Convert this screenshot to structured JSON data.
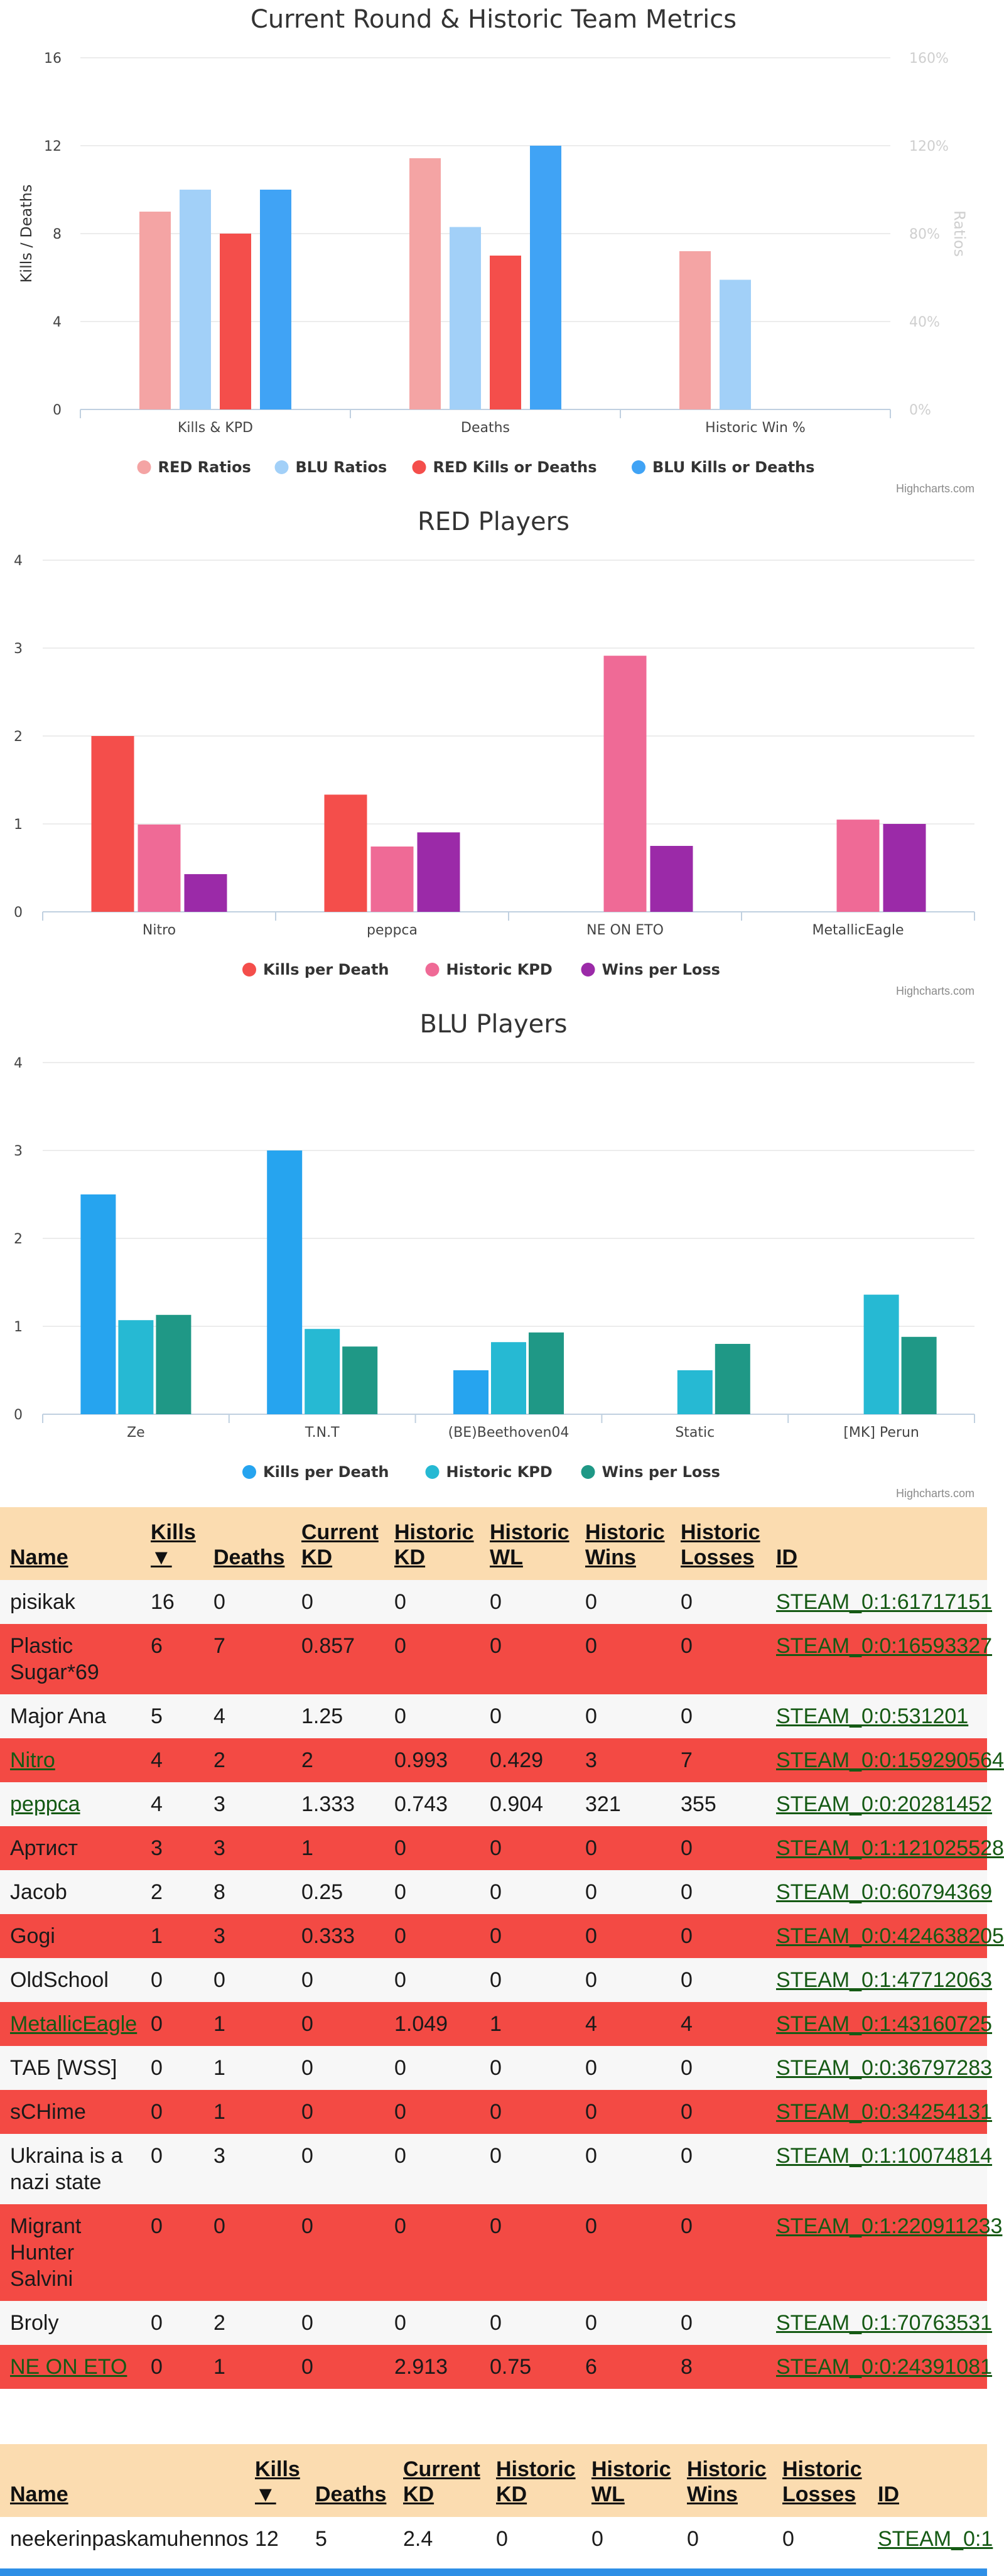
{
  "colors": {
    "red_light": "#f4a4a4",
    "blu_light": "#a2d0f8",
    "red": "#f44e4b",
    "blu": "#40a3f5",
    "red_kpd": "#f44e4b",
    "red_hkpd": "#ef6a96",
    "red_wpl": "#9b2aa8",
    "blu_kpd": "#26a4ef",
    "blu_hkpd": "#26b9d3",
    "blu_wpl": "#1f9886"
  },
  "chart_data": [
    {
      "type": "bar",
      "title": "Current Round & Historic Team Metrics",
      "categories": [
        "Kills & KPD",
        "Deaths",
        "Historic Win %"
      ],
      "ylabel": "Kills / Deaths",
      "ylabel_right": "Ratios",
      "ylim": [
        0,
        16
      ],
      "yticks": [
        "0",
        "4",
        "8",
        "12",
        "16"
      ],
      "ylim_right": [
        0,
        1.6
      ],
      "yticks_right": [
        "0%",
        "40%",
        "80%",
        "120%",
        "160%"
      ],
      "series": [
        {
          "name": "RED Ratios",
          "axis": "right",
          "values": [
            0.9,
            1.143,
            0.72
          ]
        },
        {
          "name": "BLU Ratios",
          "axis": "right",
          "values": [
            1.0,
            0.83,
            0.59
          ]
        },
        {
          "name": "RED Kills or Deaths",
          "axis": "left",
          "values": [
            8,
            7,
            null
          ]
        },
        {
          "name": "BLU Kills or Deaths",
          "axis": "left",
          "values": [
            10,
            12,
            null
          ]
        }
      ],
      "credits": "Highcharts.com"
    },
    {
      "type": "bar",
      "title": "RED Players",
      "categories": [
        "Nitro",
        "peppca",
        "NE ON ETO",
        "MetallicEagle"
      ],
      "ylim": [
        0,
        4
      ],
      "yticks": [
        "0",
        "1",
        "2",
        "3",
        "4"
      ],
      "series": [
        {
          "name": "Kills per Death",
          "values": [
            2,
            1.333,
            null,
            null
          ]
        },
        {
          "name": "Historic KPD",
          "values": [
            0.993,
            0.743,
            2.913,
            1.049
          ]
        },
        {
          "name": "Wins per Loss",
          "values": [
            0.429,
            0.904,
            0.75,
            1
          ]
        }
      ],
      "credits": "Highcharts.com"
    },
    {
      "type": "bar",
      "title": "BLU Players",
      "categories": [
        "Ze",
        "T.N.T",
        "(BE)Beethoven04",
        "Static",
        "[MK] Perun"
      ],
      "ylim": [
        0,
        4
      ],
      "yticks": [
        "0",
        "1",
        "2",
        "3",
        "4"
      ],
      "series": [
        {
          "name": "Kills per Death",
          "values": [
            2.5,
            3,
            0.5,
            null,
            null
          ]
        },
        {
          "name": "Historic KPD",
          "values": [
            1.07,
            0.97,
            0.82,
            0.5,
            1.36
          ]
        },
        {
          "name": "Wins per Loss",
          "values": [
            1.13,
            0.77,
            0.93,
            0.8,
            0.88
          ]
        }
      ],
      "credits": "Highcharts.com"
    }
  ],
  "tables": [
    {
      "headers": [
        "Name",
        "Kills ▼",
        "Deaths",
        "Current KD",
        "Historic KD",
        "Historic WL",
        "Historic Wins",
        "Historic Losses",
        "ID"
      ],
      "rows": [
        {
          "team": "plain",
          "link": false,
          "cells": [
            "pisikak",
            "16",
            "0",
            "0",
            "0",
            "0",
            "0",
            "0",
            "STEAM_0:1:61717151"
          ]
        },
        {
          "team": "red",
          "link": false,
          "cells": [
            "Plastic Sugar*69",
            "6",
            "7",
            "0.857",
            "0",
            "0",
            "0",
            "0",
            "STEAM_0:0:16593327"
          ]
        },
        {
          "team": "plain",
          "link": false,
          "cells": [
            "Major Ana",
            "5",
            "4",
            "1.25",
            "0",
            "0",
            "0",
            "0",
            "STEAM_0:0:531201"
          ]
        },
        {
          "team": "red",
          "link": true,
          "cells": [
            "Nitro",
            "4",
            "2",
            "2",
            "0.993",
            "0.429",
            "3",
            "7",
            "STEAM_0:0:159290564"
          ]
        },
        {
          "team": "plain",
          "link": true,
          "cells": [
            "peppca",
            "4",
            "3",
            "1.333",
            "0.743",
            "0.904",
            "321",
            "355",
            "STEAM_0:0:20281452"
          ]
        },
        {
          "team": "red",
          "link": false,
          "cells": [
            "Артист",
            "3",
            "3",
            "1",
            "0",
            "0",
            "0",
            "0",
            "STEAM_0:1:121025528"
          ]
        },
        {
          "team": "plain",
          "link": false,
          "cells": [
            "Jacob",
            "2",
            "8",
            "0.25",
            "0",
            "0",
            "0",
            "0",
            "STEAM_0:0:60794369"
          ]
        },
        {
          "team": "red",
          "link": false,
          "cells": [
            "Gogi",
            "1",
            "3",
            "0.333",
            "0",
            "0",
            "0",
            "0",
            "STEAM_0:0:424638205"
          ]
        },
        {
          "team": "plain",
          "link": false,
          "cells": [
            "OldSchool",
            "0",
            "0",
            "0",
            "0",
            "0",
            "0",
            "0",
            "STEAM_0:1:47712063"
          ]
        },
        {
          "team": "red",
          "link": true,
          "cells": [
            "MetallicEagle",
            "0",
            "1",
            "0",
            "1.049",
            "1",
            "4",
            "4",
            "STEAM_0:1:43160725"
          ]
        },
        {
          "team": "plain",
          "link": false,
          "cells": [
            "ТАБ [WSS]",
            "0",
            "1",
            "0",
            "0",
            "0",
            "0",
            "0",
            "STEAM_0:0:36797283"
          ]
        },
        {
          "team": "red",
          "link": false,
          "cells": [
            "sCHime",
            "0",
            "1",
            "0",
            "0",
            "0",
            "0",
            "0",
            "STEAM_0:0:34254131"
          ]
        },
        {
          "team": "plain",
          "link": false,
          "cells": [
            "Ukraina is a nazi state",
            "0",
            "3",
            "0",
            "0",
            "0",
            "0",
            "0",
            "STEAM_0:1:10074814"
          ]
        },
        {
          "team": "red",
          "link": false,
          "cells": [
            "Migrant Hunter Salvini",
            "0",
            "0",
            "0",
            "0",
            "0",
            "0",
            "0",
            "STEAM_0:1:220911233"
          ]
        },
        {
          "team": "plain",
          "link": false,
          "cells": [
            "Broly",
            "0",
            "2",
            "0",
            "0",
            "0",
            "0",
            "0",
            "STEAM_0:1:70763531"
          ]
        },
        {
          "team": "red",
          "link": true,
          "cells": [
            "NE ON ETO",
            "0",
            "1",
            "0",
            "2.913",
            "0.75",
            "6",
            "8",
            "STEAM_0:0:24391081"
          ]
        }
      ]
    },
    {
      "headers": [
        "Name",
        "Kills ▼",
        "Deaths",
        "Current KD",
        "Historic KD",
        "Historic WL",
        "Historic Wins",
        "Historic Losses",
        "ID"
      ],
      "rows": [
        {
          "team": "blue",
          "link": false,
          "cells": [
            "neekerinpaskamuhennos",
            "12",
            "5",
            "2.4",
            "0",
            "0",
            "0",
            "0",
            "STEAM_0:1"
          ]
        }
      ]
    }
  ]
}
